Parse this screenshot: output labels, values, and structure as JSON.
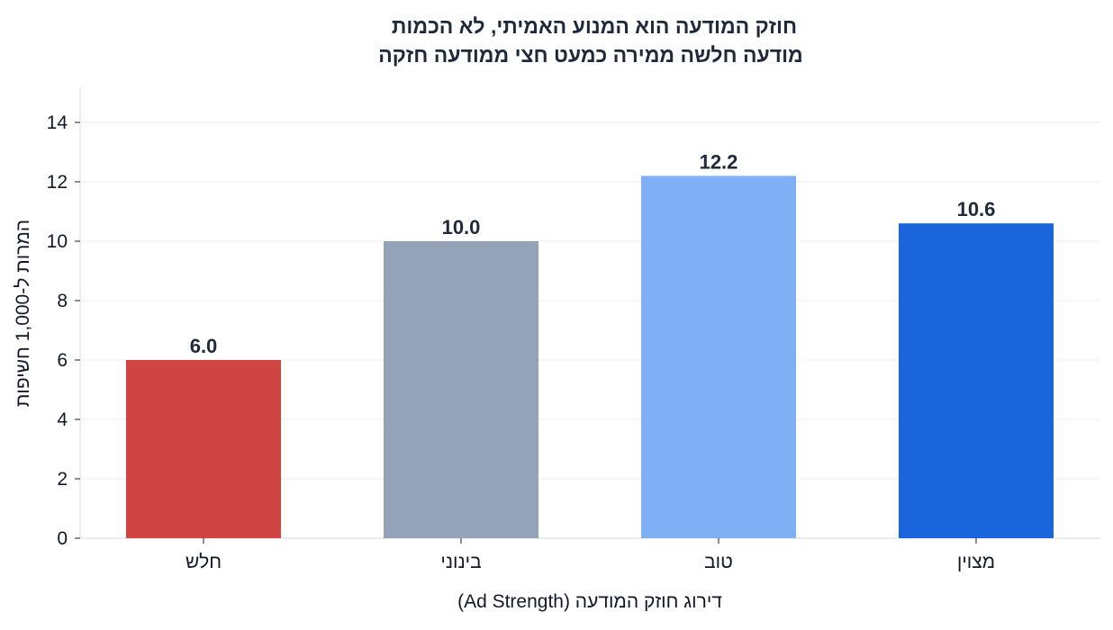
{
  "chart_data": {
    "type": "bar",
    "title_lines": [
      "חוזק המודעה הוא המנוע האמיתי, לא הכמות",
      "מודעה חלשה ממירה כמעט חצי ממודעה חזקה"
    ],
    "xlabel": "דירוג חוזק המודעה (Ad Strength)",
    "ylabel": "המרות ל-1,000 חשיפות",
    "categories": [
      "חלש",
      "בינוני",
      "טוב",
      "מצוין"
    ],
    "values": [
      6.0,
      10.0,
      12.2,
      10.6
    ],
    "value_labels": [
      "6.0",
      "10.0",
      "12.2",
      "10.6"
    ],
    "colors": [
      "#d04444",
      "#94a3b8",
      "#7fb0f5",
      "#1b65dc"
    ],
    "yticks": [
      0,
      2,
      4,
      6,
      8,
      10,
      12,
      14
    ],
    "ylim": [
      0,
      15.2
    ],
    "grid": true,
    "legend": "none"
  }
}
